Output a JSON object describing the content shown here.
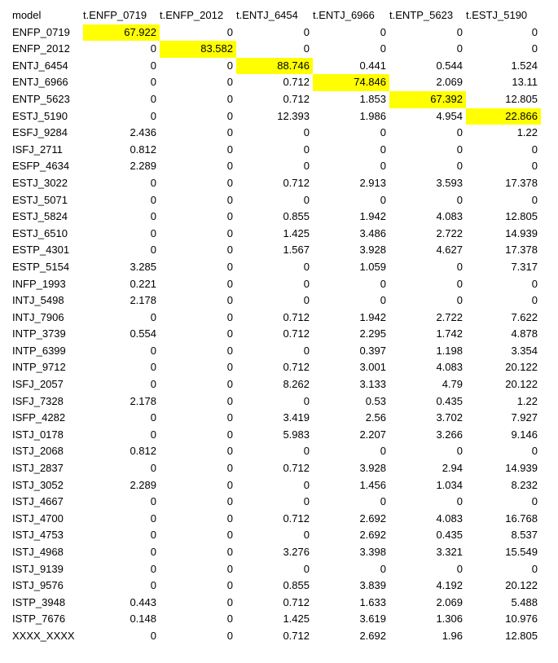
{
  "highlight_color": "#ffff00",
  "table": {
    "headers": [
      "model",
      "t.ENFP_0719",
      "t.ENFP_2012",
      "t.ENTJ_6454",
      "t.ENTJ_6966",
      "t.ENTP_5623",
      "t.ESTJ_5190"
    ],
    "highlighted_cells": [
      [
        0,
        1
      ],
      [
        1,
        2
      ],
      [
        2,
        3
      ],
      [
        3,
        4
      ],
      [
        4,
        5
      ],
      [
        5,
        6
      ]
    ],
    "rows": [
      [
        "ENFP_0719",
        "67.922",
        "0",
        "0",
        "0",
        "0",
        "0"
      ],
      [
        "ENFP_2012",
        "0",
        "83.582",
        "0",
        "0",
        "0",
        "0"
      ],
      [
        "ENTJ_6454",
        "0",
        "0",
        "88.746",
        "0.441",
        "0.544",
        "1.524"
      ],
      [
        "ENTJ_6966",
        "0",
        "0",
        "0.712",
        "74.846",
        "2.069",
        "13.11"
      ],
      [
        "ENTP_5623",
        "0",
        "0",
        "0.712",
        "1.853",
        "67.392",
        "12.805"
      ],
      [
        "ESTJ_5190",
        "0",
        "0",
        "12.393",
        "1.986",
        "4.954",
        "22.866"
      ],
      [
        "ESFJ_9284",
        "2.436",
        "0",
        "0",
        "0",
        "0",
        "1.22"
      ],
      [
        "ISFJ_2711",
        "0.812",
        "0",
        "0",
        "0",
        "0",
        "0"
      ],
      [
        "ESFP_4634",
        "2.289",
        "0",
        "0",
        "0",
        "0",
        "0"
      ],
      [
        "ESTJ_3022",
        "0",
        "0",
        "0.712",
        "2.913",
        "3.593",
        "17.378"
      ],
      [
        "ESTJ_5071",
        "0",
        "0",
        "0",
        "0",
        "0",
        "0"
      ],
      [
        "ESTJ_5824",
        "0",
        "0",
        "0.855",
        "1.942",
        "4.083",
        "12.805"
      ],
      [
        "ESTJ_6510",
        "0",
        "0",
        "1.425",
        "3.486",
        "2.722",
        "14.939"
      ],
      [
        "ESTP_4301",
        "0",
        "0",
        "1.567",
        "3.928",
        "4.627",
        "17.378"
      ],
      [
        "ESTP_5154",
        "3.285",
        "0",
        "0",
        "1.059",
        "0",
        "7.317"
      ],
      [
        "INFP_1993",
        "0.221",
        "0",
        "0",
        "0",
        "0",
        "0"
      ],
      [
        "INTJ_5498",
        "2.178",
        "0",
        "0",
        "0",
        "0",
        "0"
      ],
      [
        "INTJ_7906",
        "0",
        "0",
        "0.712",
        "1.942",
        "2.722",
        "7.622"
      ],
      [
        "INTP_3739",
        "0.554",
        "0",
        "0.712",
        "2.295",
        "1.742",
        "4.878"
      ],
      [
        "INTP_6399",
        "0",
        "0",
        "0",
        "0.397",
        "1.198",
        "3.354"
      ],
      [
        "INTP_9712",
        "0",
        "0",
        "0.712",
        "3.001",
        "4.083",
        "20.122"
      ],
      [
        "ISFJ_2057",
        "0",
        "0",
        "8.262",
        "3.133",
        "4.79",
        "20.122"
      ],
      [
        "ISFJ_7328",
        "2.178",
        "0",
        "0",
        "0.53",
        "0.435",
        "1.22"
      ],
      [
        "ISFP_4282",
        "0",
        "0",
        "3.419",
        "2.56",
        "3.702",
        "7.927"
      ],
      [
        "ISTJ_0178",
        "0",
        "0",
        "5.983",
        "2.207",
        "3.266",
        "9.146"
      ],
      [
        "ISTJ_2068",
        "0.812",
        "0",
        "0",
        "0",
        "0",
        "0"
      ],
      [
        "ISTJ_2837",
        "0",
        "0",
        "0.712",
        "3.928",
        "2.94",
        "14.939"
      ],
      [
        "ISTJ_3052",
        "2.289",
        "0",
        "0",
        "1.456",
        "1.034",
        "8.232"
      ],
      [
        "ISTJ_4667",
        "0",
        "0",
        "0",
        "0",
        "0",
        "0"
      ],
      [
        "ISTJ_4700",
        "0",
        "0",
        "0.712",
        "2.692",
        "4.083",
        "16.768"
      ],
      [
        "ISTJ_4753",
        "0",
        "0",
        "0",
        "2.692",
        "0.435",
        "8.537"
      ],
      [
        "ISTJ_4968",
        "0",
        "0",
        "3.276",
        "3.398",
        "3.321",
        "15.549"
      ],
      [
        "ISTJ_9139",
        "0",
        "0",
        "0",
        "0",
        "0",
        "0"
      ],
      [
        "ISTJ_9576",
        "0",
        "0",
        "0.855",
        "3.839",
        "4.192",
        "20.122"
      ],
      [
        "ISTP_3948",
        "0.443",
        "0",
        "0.712",
        "1.633",
        "2.069",
        "5.488"
      ],
      [
        "ISTP_7676",
        "0.148",
        "0",
        "1.425",
        "3.619",
        "1.306",
        "10.976"
      ],
      [
        "XXXX_XXXX",
        "0",
        "0",
        "0.712",
        "2.692",
        "1.96",
        "12.805"
      ]
    ]
  }
}
